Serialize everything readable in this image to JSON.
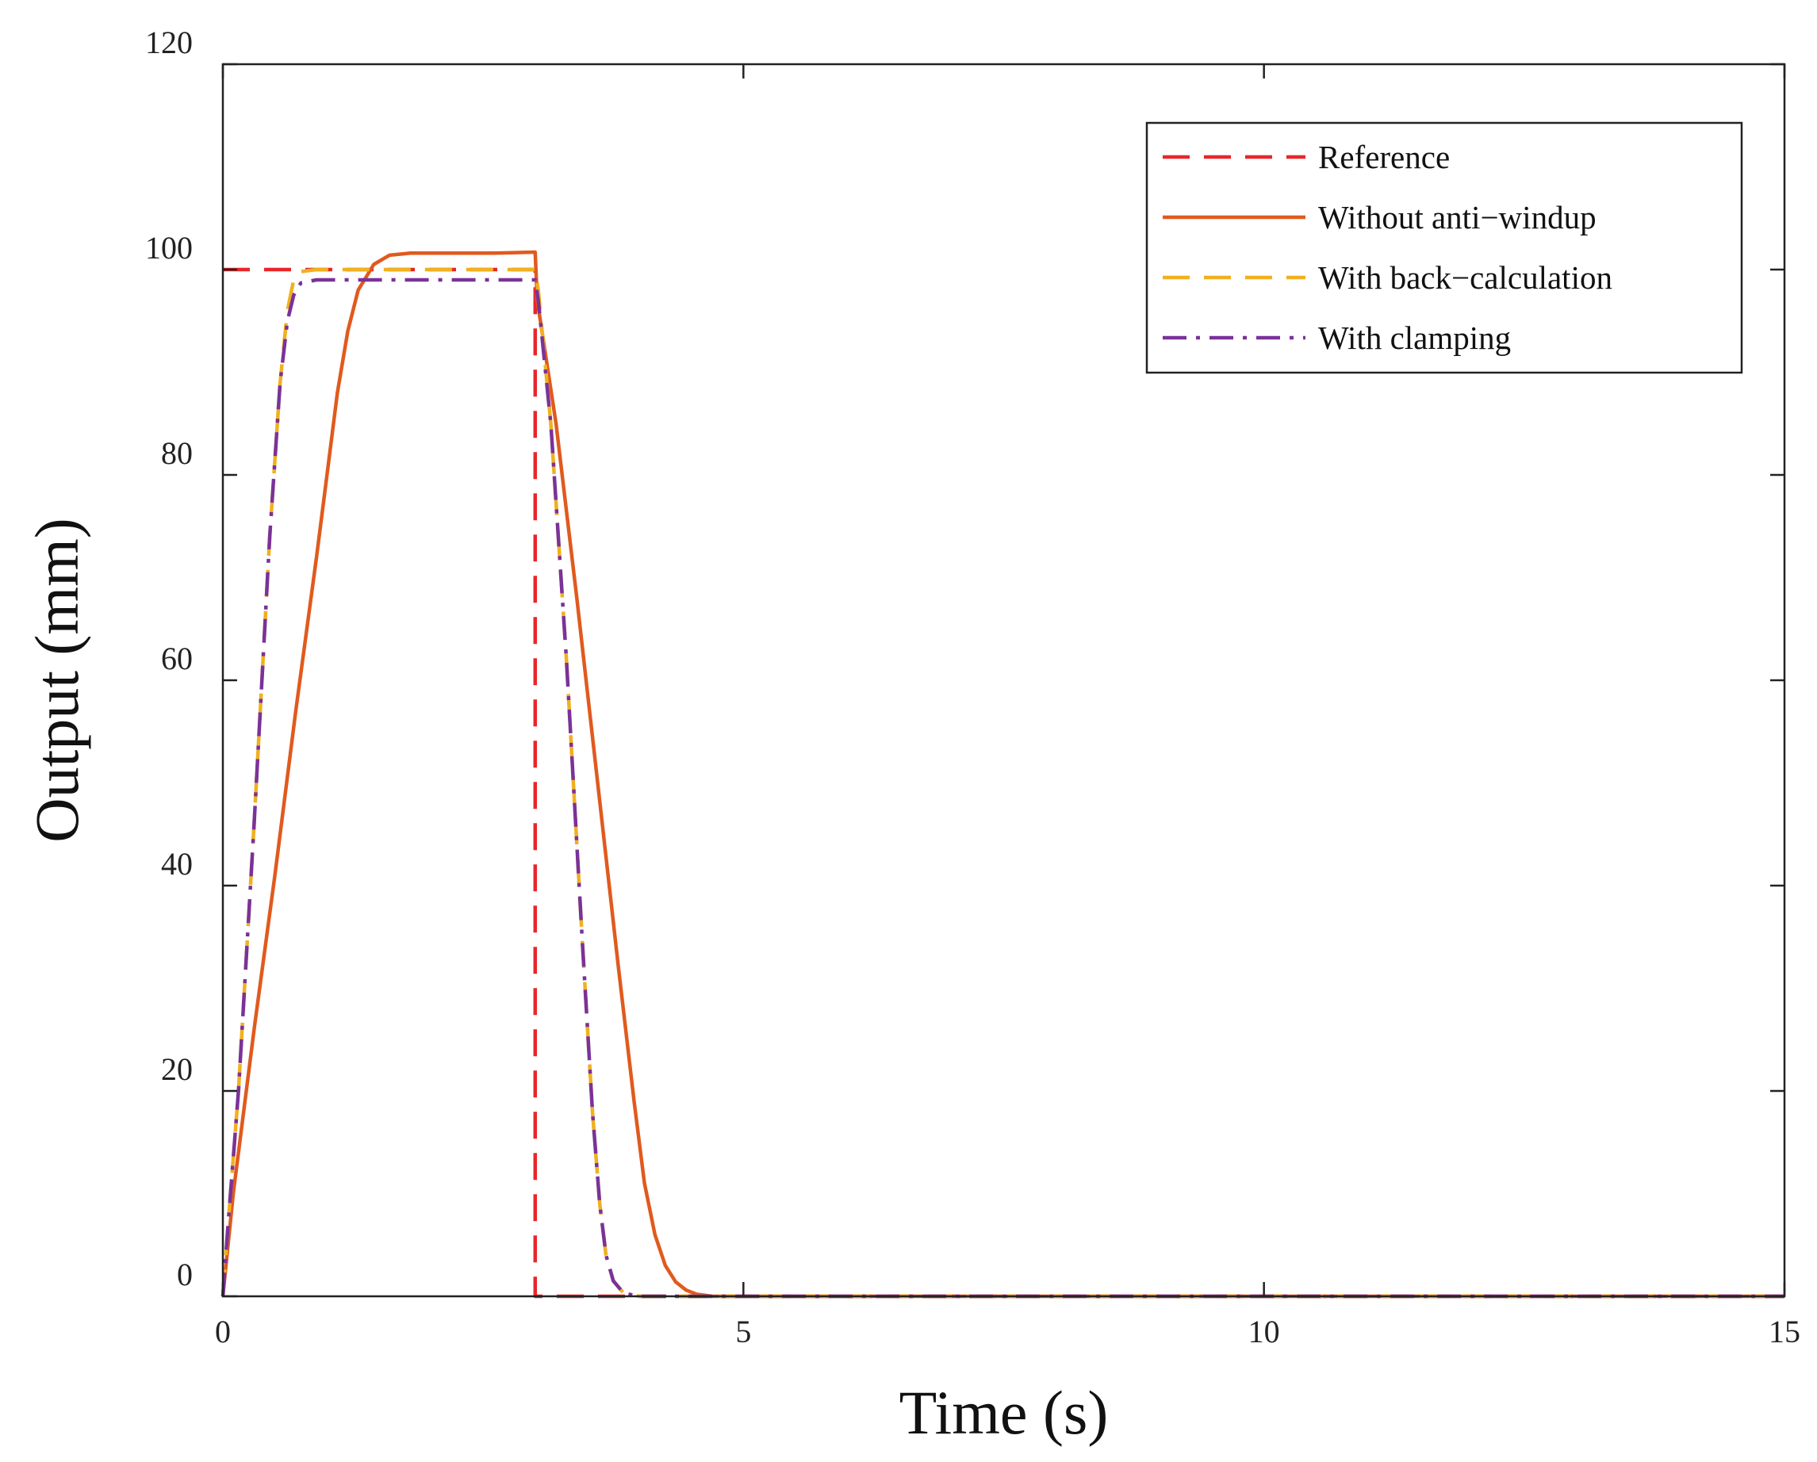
{
  "chart_data": {
    "type": "line",
    "title": "",
    "xlabel": "Time (s)",
    "ylabel": "Output (mm)",
    "xlim": [
      0,
      15
    ],
    "ylim": [
      0,
      120
    ],
    "xticks": [
      0,
      5,
      10,
      15
    ],
    "yticks": [
      0,
      20,
      40,
      60,
      80,
      100,
      120
    ],
    "grid": false,
    "legend_position": "top-right",
    "series": [
      {
        "name": "Reference",
        "color": "#e8262a",
        "style": "dashed",
        "x": [
          0,
          3,
          3,
          15
        ],
        "y": [
          100,
          100,
          0,
          0
        ]
      },
      {
        "name": "Without anti−windup",
        "color": "#e05a1e",
        "style": "solid",
        "x": [
          0,
          0.1,
          0.3,
          0.5,
          0.7,
          0.9,
          1.0,
          1.1,
          1.2,
          1.3,
          1.45,
          1.6,
          1.8,
          2.2,
          2.6,
          3.0,
          3.02,
          3.2,
          3.4,
          3.6,
          3.8,
          3.95,
          4.05,
          4.15,
          4.25,
          4.35,
          4.45,
          4.55,
          4.7,
          5.0,
          15
        ],
        "y": [
          0,
          10,
          26,
          41,
          57,
          72,
          80,
          88,
          94,
          98,
          100.5,
          101.4,
          101.6,
          101.6,
          101.6,
          101.7,
          97,
          85,
          68,
          50,
          32,
          19,
          11,
          6,
          3,
          1.4,
          0.6,
          0.2,
          0,
          0,
          0
        ]
      },
      {
        "name": "With back−calculation",
        "color": "#f0b020",
        "style": "dashed",
        "x": [
          0,
          0.05,
          0.15,
          0.3,
          0.45,
          0.55,
          0.62,
          0.68,
          0.75,
          0.9,
          1.2,
          2.0,
          3.0,
          3.03,
          3.15,
          3.3,
          3.45,
          3.55,
          3.62,
          3.68,
          3.75,
          3.85,
          4.0,
          15
        ],
        "y": [
          0,
          7,
          20,
          46,
          74,
          89,
          96,
          99,
          99.8,
          100,
          100,
          100,
          100,
          98,
          85,
          62,
          35,
          18,
          9,
          4,
          1.5,
          0.3,
          0,
          0
        ]
      },
      {
        "name": "With clamping",
        "color": "#7a3299",
        "style": "dashdot",
        "x": [
          0,
          0.05,
          0.15,
          0.3,
          0.45,
          0.55,
          0.62,
          0.68,
          0.75,
          0.9,
          1.2,
          2.0,
          3.0,
          3.03,
          3.15,
          3.3,
          3.45,
          3.55,
          3.62,
          3.68,
          3.75,
          3.85,
          4.0,
          15
        ],
        "y": [
          0,
          7,
          20,
          46,
          74,
          89,
          95,
          97.5,
          98.7,
          99,
          99,
          99,
          99,
          97,
          85,
          62,
          35,
          18,
          9,
          4,
          1.5,
          0.3,
          0,
          0
        ]
      }
    ]
  }
}
